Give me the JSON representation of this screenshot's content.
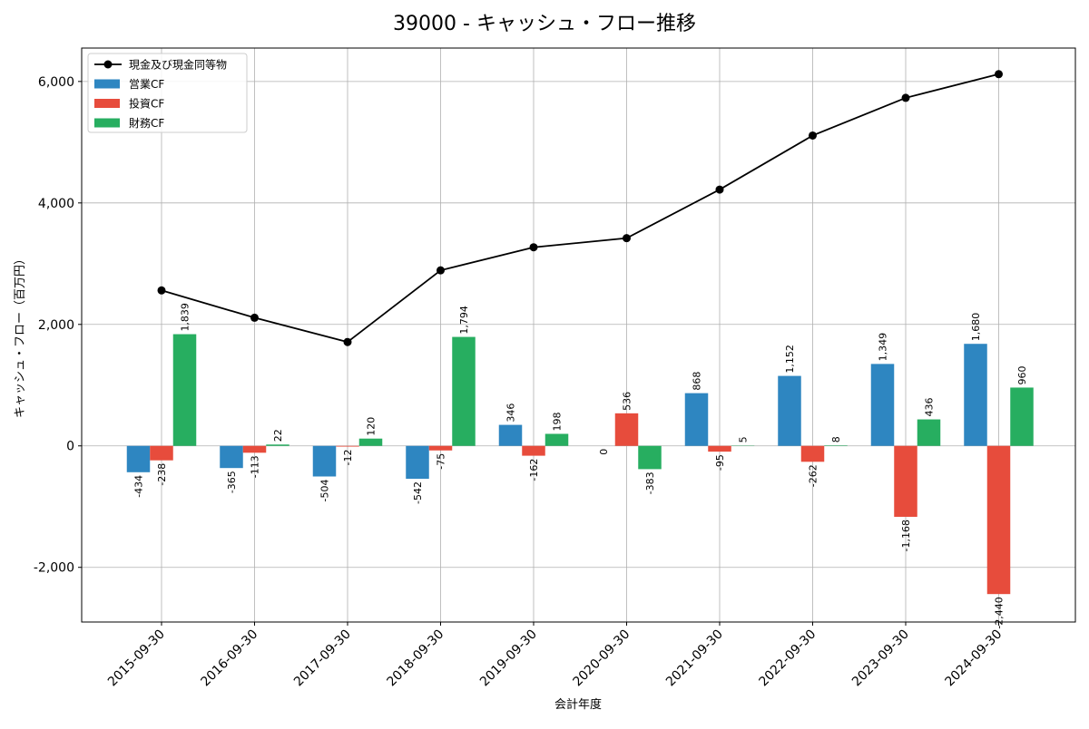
{
  "chart_data": {
    "type": "bar",
    "title": "39000 - キャッシュ・フロー推移",
    "xlabel": "会計年度",
    "ylabel": "キャッシュ・フロー（百万円）",
    "ylim": [
      -2900,
      6550
    ],
    "yticks": [
      -2000,
      0,
      2000,
      4000,
      6000
    ],
    "ytick_labels": [
      "-2,000",
      "0",
      "2,000",
      "4,000",
      "6,000"
    ],
    "grid": true,
    "legend_position": "top-left",
    "categories": [
      "2015-09-30",
      "2016-09-30",
      "2017-09-30",
      "2018-09-30",
      "2019-09-30",
      "2020-09-30",
      "2021-09-30",
      "2022-09-30",
      "2023-09-30",
      "2024-09-30"
    ],
    "series": [
      {
        "name": "営業CF",
        "type": "bar",
        "color": "#2e86c1",
        "values": [
          -434,
          -365,
          -504,
          -542,
          346,
          0,
          868,
          1152,
          1349,
          1680
        ],
        "labels": [
          "-434",
          "-365",
          "-504",
          "-542",
          "346",
          "0",
          "868",
          "1,152",
          "1,349",
          "1,680"
        ]
      },
      {
        "name": "投資CF",
        "type": "bar",
        "color": "#e74c3c",
        "values": [
          -238,
          -113,
          -12,
          -75,
          -162,
          536,
          -95,
          -262,
          -1168,
          -2440
        ],
        "labels": [
          "-238",
          "-113",
          "-12",
          "-75",
          "-162",
          "536",
          "-95",
          "-262",
          "-1,168",
          "-2,440"
        ]
      },
      {
        "name": "財務CF",
        "type": "bar",
        "color": "#27ae60",
        "values": [
          1839,
          22,
          120,
          1794,
          198,
          -383,
          5,
          8,
          436,
          960
        ],
        "labels": [
          "1,839",
          "22",
          "120",
          "1,794",
          "198",
          "-383",
          "5",
          "8",
          "436",
          "960"
        ]
      },
      {
        "name": "現金及び現金同等物",
        "type": "line",
        "color": "#000000",
        "values": [
          2560,
          2110,
          1710,
          2890,
          3270,
          3420,
          4220,
          5110,
          5730,
          6120
        ]
      }
    ]
  }
}
